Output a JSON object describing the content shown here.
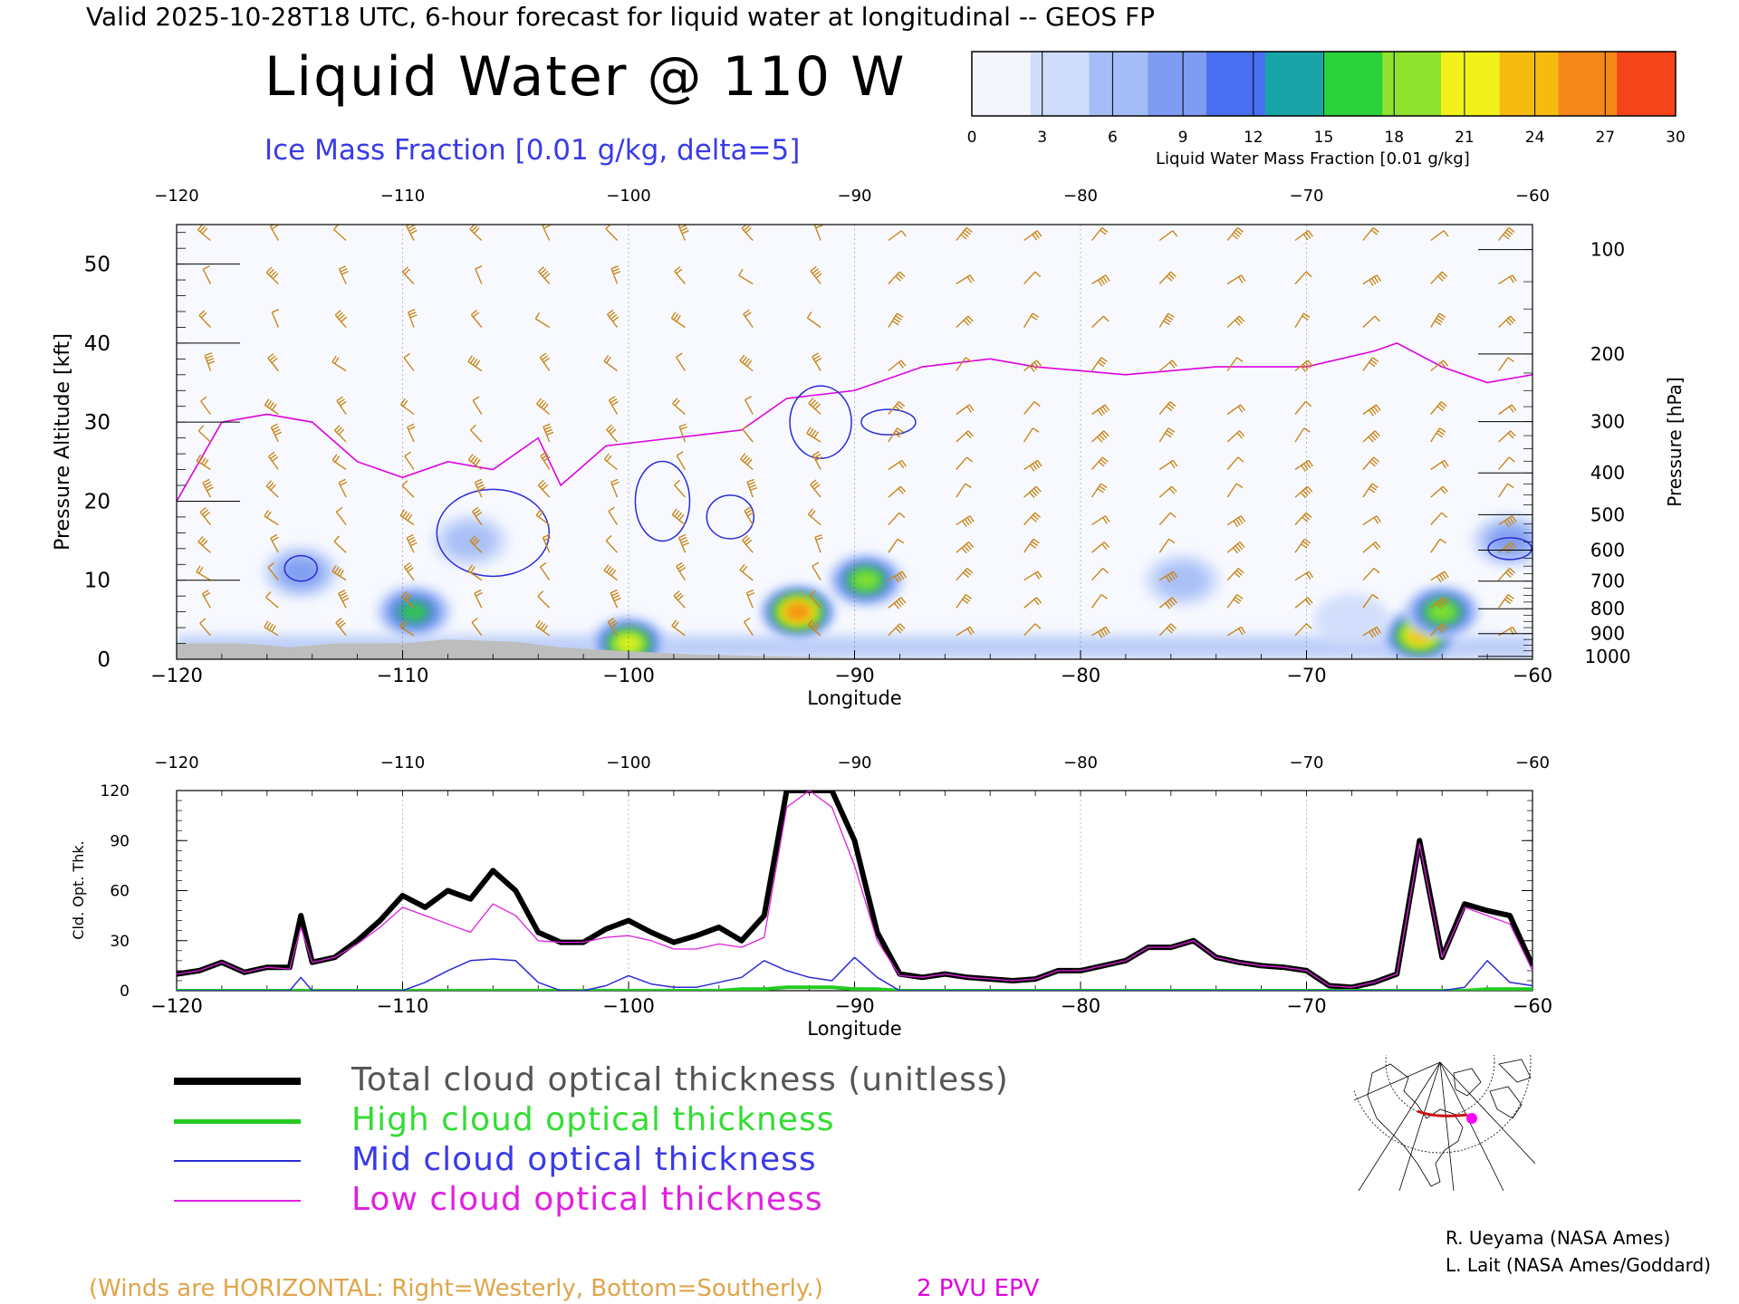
{
  "header": {
    "top_line": "Valid 2025-10-28T18 UTC, 6-hour forecast for liquid water at longitudinal -- GEOS FP",
    "title": "Liquid Water @ 110 W",
    "subtitle": "Ice Mass Fraction [0.01 g/kg, delta=5]"
  },
  "colorbar": {
    "label": "Liquid Water Mass Fraction [0.01 g/kg]",
    "ticks": [
      "0",
      "3",
      "6",
      "9",
      "12",
      "15",
      "18",
      "21",
      "24",
      "27",
      "30"
    ],
    "colors": [
      "#f4f6fe",
      "#cfdcfb",
      "#a5bdf6",
      "#7e9cf2",
      "#4a6ef0",
      "#19a4a8",
      "#2bd23c",
      "#8ee22e",
      "#f2f21a",
      "#f5bb10",
      "#f58818",
      "#f5431a"
    ]
  },
  "top_panel": {
    "lon_ticks": [
      "-120",
      "-110",
      "-100",
      "-90",
      "-80",
      "-70",
      "-60"
    ],
    "alt_ticks": [
      "0",
      "10",
      "20",
      "30",
      "40",
      "50"
    ],
    "press_ticks": [
      "100",
      "200",
      "300",
      "400",
      "500",
      "600",
      "700",
      "800",
      "900",
      "1000"
    ],
    "ylabel_left": "Pressure Altitude [kft]",
    "ylabel_right": "Pressure [hPa]",
    "xlabel": "Longitude"
  },
  "bottom_panel": {
    "lon_ticks": [
      "-120",
      "-110",
      "-100",
      "-90",
      "-80",
      "-70",
      "-60"
    ],
    "y_ticks": [
      "0",
      "30",
      "60",
      "90",
      "120"
    ],
    "ylabel": "Cld. Opt. Thk.",
    "xlabel": "Longitude"
  },
  "legend": {
    "total": "Total cloud optical thickness (unitless)",
    "high": "High cloud optical thickness",
    "mid": "Mid cloud optical thickness",
    "low": "Low cloud optical thickness"
  },
  "notes": {
    "winds": "(Winds are HORIZONTAL: Right=Westerly, Bottom=Southerly.)",
    "epv": "2 PVU EPV"
  },
  "credits": {
    "line1": "R. Ueyama (NASA Ames)",
    "line2": "L. Lait (NASA Ames/Goddard)"
  },
  "chart_data": [
    {
      "type": "heatmap",
      "title": "Liquid Water @ 110 W",
      "xlabel": "Longitude",
      "ylabel": "Pressure Altitude [kft]",
      "xlim": [
        -120,
        -60
      ],
      "ylim": [
        0,
        55
      ],
      "colorbar_range": [
        0,
        30
      ],
      "colorbar_units": "0.01 g/kg",
      "liquid_water_regions": [
        {
          "lon": -92.5,
          "alt_kft": 6,
          "peak": 27
        },
        {
          "lon": -89.5,
          "alt_kft": 10,
          "peak": 18
        },
        {
          "lon": -109.5,
          "alt_kft": 6,
          "peak": 15
        },
        {
          "lon": -65,
          "alt_kft": 3,
          "peak": 24
        },
        {
          "lon": -64,
          "alt_kft": 6,
          "peak": 18
        },
        {
          "lon": -100,
          "alt_kft": 2,
          "peak": 21
        },
        {
          "lon": -114.5,
          "alt_kft": 11,
          "peak": 9
        },
        {
          "lon": -107,
          "alt_kft": 15,
          "peak": 6
        },
        {
          "lon": -61,
          "alt_kft": 15,
          "peak": 9
        },
        {
          "lon": -75.5,
          "alt_kft": 10,
          "peak": 6
        },
        {
          "lon": -68,
          "alt_kft": 5,
          "peak": 3
        }
      ],
      "epv_2pvu_line": [
        {
          "lon": -120,
          "alt_kft": 20
        },
        {
          "lon": -118,
          "alt_kft": 30
        },
        {
          "lon": -116,
          "alt_kft": 31
        },
        {
          "lon": -114,
          "alt_kft": 30
        },
        {
          "lon": -112,
          "alt_kft": 25
        },
        {
          "lon": -110,
          "alt_kft": 23
        },
        {
          "lon": -108,
          "alt_kft": 25
        },
        {
          "lon": -106,
          "alt_kft": 24
        },
        {
          "lon": -104,
          "alt_kft": 28
        },
        {
          "lon": -103,
          "alt_kft": 22
        },
        {
          "lon": -101,
          "alt_kft": 27
        },
        {
          "lon": -98,
          "alt_kft": 28
        },
        {
          "lon": -95,
          "alt_kft": 29
        },
        {
          "lon": -93,
          "alt_kft": 33
        },
        {
          "lon": -90,
          "alt_kft": 34
        },
        {
          "lon": -87,
          "alt_kft": 37
        },
        {
          "lon": -84,
          "alt_kft": 38
        },
        {
          "lon": -82,
          "alt_kft": 37
        },
        {
          "lon": -78,
          "alt_kft": 36
        },
        {
          "lon": -74,
          "alt_kft": 37
        },
        {
          "lon": -70,
          "alt_kft": 37
        },
        {
          "lon": -67,
          "alt_kft": 39
        },
        {
          "lon": -66,
          "alt_kft": 40
        },
        {
          "lon": -64,
          "alt_kft": 37
        },
        {
          "lon": -62,
          "alt_kft": 35
        },
        {
          "lon": -60,
          "alt_kft": 36
        }
      ]
    },
    {
      "type": "line",
      "xlabel": "Longitude",
      "ylabel": "Cld. Opt. Thk.",
      "xlim": [
        -120,
        -60
      ],
      "ylim": [
        0,
        120
      ],
      "x": [
        -120,
        -119,
        -118,
        -117,
        -116,
        -115,
        -114.5,
        -114,
        -113,
        -112,
        -111,
        -110,
        -109,
        -108,
        -107,
        -106,
        -105,
        -104,
        -103,
        -102,
        -101,
        -100,
        -99,
        -98,
        -97,
        -96,
        -95,
        -94,
        -93,
        -92,
        -91,
        -90,
        -89,
        -88,
        -87,
        -86,
        -85,
        -84,
        -83,
        -82,
        -81,
        -80,
        -79,
        -78,
        -77,
        -76,
        -75,
        -74,
        -73,
        -72,
        -71,
        -70,
        -69,
        -68,
        -67,
        -66,
        -65,
        -64,
        -63,
        -62,
        -61,
        -60
      ],
      "series": [
        {
          "name": "Total cloud optical thickness (unitless)",
          "color": "#000000",
          "values": [
            10,
            12,
            17,
            11,
            14,
            14,
            45,
            17,
            20,
            30,
            42,
            57,
            50,
            60,
            55,
            72,
            60,
            35,
            29,
            29,
            37,
            42,
            35,
            29,
            33,
            38,
            30,
            45,
            120,
            120,
            120,
            90,
            35,
            10,
            8,
            10,
            8,
            7,
            6,
            7,
            12,
            12,
            15,
            18,
            26,
            26,
            30,
            20,
            17,
            15,
            14,
            12,
            3,
            2,
            5,
            10,
            90,
            20,
            52,
            48,
            45,
            15
          ]
        },
        {
          "name": "High cloud optical thickness",
          "color": "#22cc22",
          "values": [
            0,
            0,
            0,
            0,
            0,
            0,
            0,
            0,
            0,
            0,
            0,
            0,
            0,
            0,
            0,
            0,
            0,
            0,
            0,
            0,
            0,
            0,
            0,
            0,
            0,
            0,
            1,
            1,
            2,
            2,
            2,
            1,
            1,
            0,
            0,
            0,
            0,
            0,
            0,
            0,
            0,
            0,
            0,
            0,
            0,
            0,
            0,
            0,
            0,
            0,
            0,
            0,
            0,
            0,
            0,
            0,
            0,
            0,
            0,
            1,
            1,
            1
          ]
        },
        {
          "name": "Mid cloud optical thickness",
          "color": "#2b2bd6",
          "values": [
            0,
            0,
            0,
            0,
            0,
            0,
            8,
            0,
            0,
            0,
            0,
            0,
            5,
            12,
            18,
            19,
            18,
            5,
            0,
            0,
            3,
            9,
            4,
            2,
            2,
            5,
            8,
            18,
            12,
            8,
            6,
            20,
            8,
            0,
            0,
            0,
            0,
            0,
            0,
            0,
            0,
            0,
            0,
            0,
            0,
            0,
            0,
            0,
            0,
            0,
            0,
            0,
            0,
            0,
            0,
            0,
            0,
            0,
            2,
            18,
            5,
            3
          ]
        },
        {
          "name": "Low cloud optical thickness",
          "color": "#e020e0",
          "values": [
            10,
            12,
            17,
            11,
            14,
            13,
            38,
            17,
            20,
            28,
            38,
            50,
            45,
            40,
            35,
            52,
            45,
            30,
            29,
            29,
            32,
            33,
            30,
            25,
            25,
            28,
            26,
            32,
            110,
            120,
            110,
            75,
            30,
            9,
            8,
            10,
            8,
            7,
            6,
            7,
            12,
            12,
            15,
            18,
            26,
            26,
            30,
            20,
            17,
            15,
            14,
            12,
            3,
            2,
            5,
            10,
            88,
            20,
            50,
            45,
            40,
            12
          ]
        }
      ]
    }
  ]
}
